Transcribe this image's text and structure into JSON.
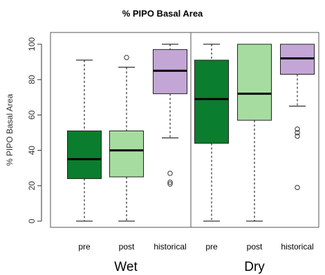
{
  "chart_data": {
    "type": "boxplot",
    "title": "% PIPO Basal Area",
    "ylabel": "% PIPO Basal Area",
    "ylim": [
      0,
      100
    ],
    "yticks": [
      "0",
      "20",
      "40",
      "60",
      "80",
      "100"
    ],
    "panels": [
      {
        "label": "Wet",
        "categories": [
          "pre",
          "post",
          "historical"
        ]
      },
      {
        "label": "Dry",
        "categories": [
          "pre",
          "post",
          "historical"
        ]
      }
    ],
    "boxes": [
      {
        "panel": "Wet",
        "category": "pre",
        "whisker_low": 0,
        "q1": 24,
        "median": 35,
        "q3": 51,
        "whisker_high": 91,
        "outliers": [],
        "color": "#0b7d2e"
      },
      {
        "panel": "Wet",
        "category": "post",
        "whisker_low": 0,
        "q1": 25,
        "median": 40,
        "q3": 51,
        "whisker_high": 87,
        "outliers": [
          92.5
        ],
        "color": "#a7dca1"
      },
      {
        "panel": "Wet",
        "category": "historical",
        "whisker_low": 47,
        "q1": 72,
        "median": 85,
        "q3": 97,
        "whisker_high": 100,
        "outliers": [
          27,
          22,
          21
        ],
        "color": "#c3a6d6"
      },
      {
        "panel": "Dry",
        "category": "pre",
        "whisker_low": 0,
        "q1": 44,
        "median": 69,
        "q3": 91,
        "whisker_high": 100,
        "outliers": [],
        "color": "#0b7d2e"
      },
      {
        "panel": "Dry",
        "category": "post",
        "whisker_low": 0,
        "q1": 57,
        "median": 72,
        "q3": 100,
        "whisker_high": 100,
        "outliers": [],
        "color": "#a7dca1"
      },
      {
        "panel": "Dry",
        "category": "historical",
        "whisker_low": 65,
        "q1": 83,
        "median": 92,
        "q3": 100,
        "whisker_high": 100,
        "outliers": [
          52,
          50,
          48,
          19
        ],
        "color": "#c3a6d6"
      }
    ]
  }
}
